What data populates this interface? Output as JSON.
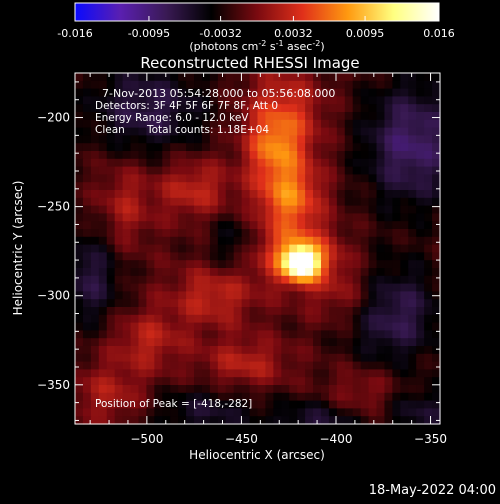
{
  "colorbar": {
    "ticks": [
      "-0.016",
      "-0.0095",
      "-0.0032",
      "0.0032",
      "0.0095",
      "0.016"
    ],
    "unit_base": "(photons cm",
    "unit_exp1": "-2",
    "unit_mid": " s",
    "unit_exp2": "-1",
    "unit_mid2": " asec",
    "unit_exp3": "-2",
    "unit_end": ")"
  },
  "chart_data": {
    "type": "heatmap",
    "title": "Reconstructed RHESSI Image",
    "xlabel": "Heliocentric X (arcsec)",
    "ylabel": "Heliocentric Y (arcsec)",
    "xlim": [
      -538,
      -345
    ],
    "ylim": [
      -372,
      -175
    ],
    "xticks": [
      -500,
      -450,
      -400,
      -350
    ],
    "yticks": [
      -200,
      -250,
      -300,
      -350
    ],
    "colorscale": {
      "min": -0.016,
      "max": 0.016,
      "stops": [
        "#0a0aff",
        "#5a1fb0",
        "#3a1a55",
        "#000000",
        "#7a0a10",
        "#e0301a",
        "#ff9a10",
        "#ffff80",
        "#ffffff"
      ]
    },
    "peak": {
      "x": -418,
      "y": -282
    },
    "sources": [
      {
        "x": -418,
        "y": -282,
        "amp": 0.016,
        "sx": 6,
        "sy": 6
      },
      {
        "x": -420,
        "y": -278,
        "amp": 0.0085,
        "sx": 15,
        "sy": 11
      },
      {
        "x": -425,
        "y": -245,
        "amp": 0.0085,
        "sx": 12,
        "sy": 14
      },
      {
        "x": -428,
        "y": -200,
        "amp": 0.006,
        "sx": 14,
        "sy": 18
      },
      {
        "x": -433,
        "y": -218,
        "amp": 0.005,
        "sx": 10,
        "sy": 12
      },
      {
        "x": -475,
        "y": -240,
        "amp": 0.0045,
        "sx": 14,
        "sy": 12
      },
      {
        "x": -465,
        "y": -300,
        "amp": 0.0045,
        "sx": 16,
        "sy": 12
      },
      {
        "x": -500,
        "y": -325,
        "amp": 0.004,
        "sx": 14,
        "sy": 12
      },
      {
        "x": -512,
        "y": -250,
        "amp": 0.0035,
        "sx": 10,
        "sy": 18
      },
      {
        "x": -520,
        "y": -355,
        "amp": 0.0035,
        "sx": 14,
        "sy": 12
      },
      {
        "x": -448,
        "y": -338,
        "amp": 0.004,
        "sx": 16,
        "sy": 10
      },
      {
        "x": -395,
        "y": -300,
        "amp": 0.0035,
        "sx": 14,
        "sy": 12
      },
      {
        "x": -385,
        "y": -355,
        "amp": 0.003,
        "sx": 14,
        "sy": 10
      },
      {
        "x": -360,
        "y": -215,
        "amp": -0.007,
        "sx": 18,
        "sy": 25
      },
      {
        "x": -370,
        "y": -310,
        "amp": -0.006,
        "sx": 18,
        "sy": 20
      },
      {
        "x": -500,
        "y": -195,
        "amp": -0.0055,
        "sx": 22,
        "sy": 18
      },
      {
        "x": -530,
        "y": -290,
        "amp": -0.005,
        "sx": 12,
        "sy": 20
      },
      {
        "x": -470,
        "y": -365,
        "amp": -0.004,
        "sx": 20,
        "sy": 10
      },
      {
        "x": -410,
        "y": -372,
        "amp": -0.0045,
        "sx": 18,
        "sy": 10
      },
      {
        "x": -355,
        "y": -365,
        "amp": -0.004,
        "sx": 14,
        "sy": 10
      },
      {
        "x": -455,
        "y": -270,
        "amp": -0.003,
        "sx": 10,
        "sy": 12
      }
    ],
    "annotations": [
      "7-Nov-2013 05:54:28.000 to 05:56:08.000",
      "Detectors: 3F 4F 5F 6F 7F 8F, Att 0",
      "Energy Range: 6.0 - 12.0 keV",
      "Clean",
      "Total counts: 1.18E+04",
      "Position of Peak = [-418,-282]"
    ],
    "grid": false,
    "legend": "colorbar-top"
  },
  "footer": {
    "timestamp": "18-May-2022 04:00"
  }
}
